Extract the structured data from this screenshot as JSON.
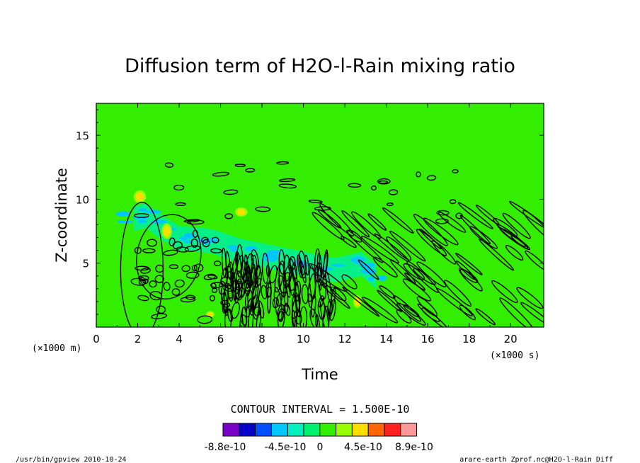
{
  "chart_data": {
    "type": "heatmap",
    "title": "Diffusion term of H2O-l-Rain mixing ratio",
    "xlabel": "Time",
    "ylabel": "Z-coordinate",
    "x_unit": "(×1000 s)",
    "y_unit": "(×1000 m)",
    "xlim": [
      0,
      21.6
    ],
    "ylim": [
      0,
      17.5
    ],
    "x_ticks": [
      "0",
      "2",
      "4",
      "6",
      "8",
      "10",
      "12",
      "14",
      "16",
      "18",
      "20"
    ],
    "x_tick_values": [
      0,
      2,
      4,
      6,
      8,
      10,
      12,
      14,
      16,
      18,
      20
    ],
    "y_ticks": [
      "5",
      "10",
      "15"
    ],
    "y_tick_values": [
      5,
      10,
      15
    ],
    "background_color": "#33ee00",
    "contour_interval": "CONTOUR INTERVAL = 1.500E-10",
    "colorbar": {
      "colors": [
        "#7a00c8",
        "#0000c8",
        "#0050ff",
        "#00c8ff",
        "#00f0c0",
        "#00f070",
        "#33ee00",
        "#99ff00",
        "#ffdd00",
        "#ff6600",
        "#ff2020",
        "#ff9999"
      ],
      "labels": [
        "-8.8e-10",
        "-4.5e-10",
        "0",
        "4.5e-10",
        "8.9e-10"
      ],
      "label_values": [
        -8.8e-10,
        -4.5e-10,
        0,
        4.5e-10,
        8.9e-10
      ]
    },
    "features": [
      {
        "kind": "cyan-band",
        "points": [
          [
            1.8,
            8.5
          ],
          [
            2.4,
            8.8
          ],
          [
            3.0,
            8.0
          ],
          [
            4.0,
            7.0
          ],
          [
            5.5,
            6.8
          ],
          [
            7.0,
            6.0
          ],
          [
            8.5,
            5.5
          ],
          [
            10.0,
            5.0
          ],
          [
            11.5,
            4.5
          ],
          [
            12.8,
            5.0
          ],
          [
            13.5,
            4.0
          ]
        ]
      },
      {
        "kind": "yellow-blob",
        "x": 2.1,
        "z": 10.2,
        "rx": 0.3,
        "rz": 0.5
      },
      {
        "kind": "yellow-blob",
        "x": 3.4,
        "z": 7.5,
        "rx": 0.25,
        "rz": 0.6
      },
      {
        "kind": "yellow-blob",
        "x": 7.0,
        "z": 9.0,
        "rx": 0.3,
        "rz": 0.35
      },
      {
        "kind": "yellow-blob",
        "x": 12.6,
        "z": 2.0,
        "rx": 0.2,
        "rz": 0.5
      },
      {
        "kind": "yellow-blob",
        "x": 5.5,
        "z": 1.0,
        "rx": 0.2,
        "rz": 0.25
      }
    ]
  },
  "footer": {
    "left": "/usr/bin/gpview  2010-10-24",
    "right": "arare-earth_Zprof.nc@H2O-l-Rain_Diff"
  }
}
